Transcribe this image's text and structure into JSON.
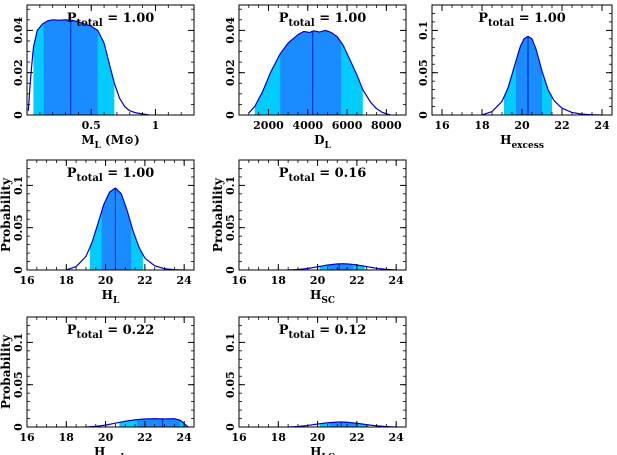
{
  "colors": {
    "band_outer": "#00ccff",
    "band_inner": "#1a8cff",
    "median_line": "#0033cc",
    "curve": "#0000cc",
    "axis": "#000000"
  },
  "chart_data": [
    {
      "type": "area",
      "panel": "ML",
      "title": "P",
      "title_sub": "total",
      "title_value": " = 1.00",
      "xlabel": "M",
      "xlabel_sub": "L",
      "xlabel_rest": " (M⊙)",
      "ylabel": "",
      "xlim": [
        0,
        1.3
      ],
      "ylim": [
        0,
        0.052
      ],
      "xticks": [
        0.5,
        1
      ],
      "xticklabels": [
        "0.5",
        "1"
      ],
      "xminor": 0.1,
      "yticks": [
        0,
        0.02,
        0.04
      ],
      "yticklabels": [
        "0",
        "0.02",
        "0.04"
      ],
      "yminor": 0.005,
      "median": 0.34,
      "band_outer": [
        0.05,
        0.68
      ],
      "band_inner": [
        0.13,
        0.55
      ],
      "x": [
        0.01,
        0.03,
        0.05,
        0.08,
        0.12,
        0.16,
        0.2,
        0.25,
        0.3,
        0.35,
        0.4,
        0.45,
        0.5,
        0.55,
        0.6,
        0.65,
        0.68,
        0.72,
        0.76,
        0.8,
        0.85,
        0.9,
        0.95
      ],
      "y": [
        0.002,
        0.019,
        0.032,
        0.04,
        0.043,
        0.0445,
        0.045,
        0.0448,
        0.045,
        0.0448,
        0.044,
        0.043,
        0.042,
        0.04,
        0.034,
        0.022,
        0.015,
        0.008,
        0.004,
        0.002,
        0.001,
        0.0005,
        0
      ]
    },
    {
      "type": "area",
      "panel": "DL",
      "title": "P",
      "title_sub": "total",
      "title_value": " = 1.00",
      "xlabel": "D",
      "xlabel_sub": "L",
      "xlabel_rest": "",
      "ylabel": "",
      "xlim": [
        500,
        9000
      ],
      "ylim": [
        0,
        0.052
      ],
      "xticks": [
        2000,
        4000,
        6000,
        8000
      ],
      "xticklabels": [
        "2000",
        "4000",
        "6000",
        "8000"
      ],
      "xminor": 500,
      "yticks": [
        0,
        0.02,
        0.04
      ],
      "yticklabels": [
        "0",
        "0.02",
        "0.04"
      ],
      "yminor": 0.005,
      "median": 4250,
      "band_outer": [
        1300,
        6800
      ],
      "band_inner": [
        2600,
        5700
      ],
      "x": [
        1000,
        1300,
        1700,
        2100,
        2600,
        3000,
        3500,
        3800,
        4100,
        4300,
        4600,
        4900,
        5200,
        5500,
        5800,
        6100,
        6500,
        6800,
        7200,
        7500,
        7800,
        8200
      ],
      "y": [
        0.001,
        0.004,
        0.011,
        0.02,
        0.029,
        0.034,
        0.038,
        0.0395,
        0.039,
        0.0398,
        0.0392,
        0.04,
        0.039,
        0.037,
        0.033,
        0.027,
        0.019,
        0.012,
        0.006,
        0.003,
        0.0012,
        0
      ]
    },
    {
      "type": "area",
      "panel": "Hexcess",
      "title": "P",
      "title_sub": "total",
      "title_value": " = 1.00",
      "xlabel": "H",
      "xlabel_sub": "excess",
      "xlabel_rest": "",
      "ylabel": "",
      "xlim": [
        15.5,
        24.5
      ],
      "ylim": [
        0,
        0.13
      ],
      "xticks": [
        16,
        18,
        20,
        22,
        24
      ],
      "xticklabels": [
        "16",
        "18",
        "20",
        "22",
        "24"
      ],
      "xminor": 0.5,
      "yticks": [
        0,
        0.05,
        0.1
      ],
      "yticklabels": [
        "0",
        "0.05",
        "0.1"
      ],
      "yminor": 0.01,
      "median": 20.3,
      "band_outer": [
        19.1,
        21.5
      ],
      "band_inner": [
        19.7,
        21.0
      ],
      "x": [
        18.0,
        18.5,
        19.0,
        19.3,
        19.6,
        19.9,
        20.1,
        20.3,
        20.5,
        20.7,
        21.0,
        21.3,
        21.6,
        22.0,
        22.5,
        23.0,
        23.5,
        24.0
      ],
      "y": [
        0,
        0.004,
        0.016,
        0.032,
        0.056,
        0.08,
        0.09,
        0.093,
        0.09,
        0.078,
        0.052,
        0.03,
        0.017,
        0.008,
        0.003,
        0.001,
        0.0003,
        0
      ]
    },
    {
      "type": "area",
      "panel": "HL",
      "title": "P",
      "title_sub": "total",
      "title_value": " = 1.00",
      "xlabel": "H",
      "xlabel_sub": "L",
      "xlabel_rest": "",
      "ylabel": "Probability",
      "xlim": [
        16,
        24.5
      ],
      "ylim": [
        0,
        0.13
      ],
      "xticks": [
        16,
        18,
        20,
        22,
        24
      ],
      "xticklabels": [
        "16",
        "18",
        "20",
        "22",
        "24"
      ],
      "xminor": 0.5,
      "yticks": [
        0,
        0.05,
        0.1
      ],
      "yticklabels": [
        "0",
        "0.05",
        "0.1"
      ],
      "yminor": 0.01,
      "median": 20.5,
      "band_outer": [
        19.2,
        21.9
      ],
      "band_inner": [
        19.8,
        21.3
      ],
      "x": [
        18.0,
        18.5,
        19.0,
        19.3,
        19.6,
        19.9,
        20.2,
        20.5,
        20.8,
        21.1,
        21.4,
        21.7,
        22.0,
        22.5,
        23.0,
        23.5,
        24.0
      ],
      "y": [
        0,
        0.004,
        0.016,
        0.032,
        0.054,
        0.077,
        0.092,
        0.097,
        0.09,
        0.07,
        0.046,
        0.027,
        0.014,
        0.005,
        0.0015,
        0.0004,
        0
      ]
    },
    {
      "type": "area",
      "panel": "HSC",
      "title": "P",
      "title_sub": "total",
      "title_value": " = 0.16",
      "xlabel": "H",
      "xlabel_sub": "SC",
      "xlabel_rest": "",
      "ylabel": "Probability",
      "xlim": [
        16,
        24.5
      ],
      "ylim": [
        0,
        0.13
      ],
      "xticks": [
        16,
        18,
        20,
        22,
        24
      ],
      "xticklabels": [
        "16",
        "18",
        "20",
        "22",
        "24"
      ],
      "xminor": 0.5,
      "yticks": [
        0,
        0.05,
        0.1
      ],
      "yticklabels": [
        "0",
        "0.05",
        "0.1"
      ],
      "yminor": 0.01,
      "median": 21.1,
      "band_outer": [
        20.1,
        22.4
      ],
      "band_inner": [
        20.5,
        21.8
      ],
      "x": [
        18.5,
        19.0,
        19.5,
        20.0,
        20.5,
        21.0,
        21.3,
        21.6,
        22.0,
        22.5,
        23.0,
        23.5,
        24.0
      ],
      "y": [
        0,
        0.0006,
        0.0018,
        0.0038,
        0.0058,
        0.0072,
        0.0074,
        0.007,
        0.006,
        0.004,
        0.002,
        0.0008,
        0
      ]
    },
    {
      "type": "area",
      "panel": "Hamb",
      "title": "P",
      "title_sub": "total",
      "title_value": " = 0.22",
      "xlabel": "H",
      "xlabel_sub": "amb",
      "xlabel_rest": "",
      "ylabel": "Probability",
      "xlim": [
        16,
        24.5
      ],
      "ylim": [
        0,
        0.13
      ],
      "xticks": [
        16,
        18,
        20,
        22,
        24
      ],
      "xticklabels": [
        "16",
        "18",
        "20",
        "22",
        "24"
      ],
      "xminor": 0.5,
      "yticks": [
        0,
        0.05,
        0.1
      ],
      "yticklabels": [
        "0",
        "0.05",
        "0.1"
      ],
      "yminor": 0.01,
      "median": 22.9,
      "band_outer": [
        20.7,
        24.1
      ],
      "band_inner": [
        21.6,
        23.8
      ],
      "x": [
        19.0,
        19.5,
        20.0,
        20.5,
        21.0,
        21.5,
        22.0,
        22.5,
        23.0,
        23.5,
        23.8,
        24.0,
        24.2
      ],
      "y": [
        0,
        0.0008,
        0.0022,
        0.0045,
        0.0068,
        0.0085,
        0.0095,
        0.0098,
        0.0095,
        0.0098,
        0.008,
        0.004,
        0
      ]
    },
    {
      "type": "area",
      "panel": "HLC",
      "title": "P",
      "title_sub": "total",
      "title_value": " = 0.12",
      "xlabel": "H",
      "xlabel_sub": "LC",
      "xlabel_rest": "",
      "ylabel": "",
      "xlim": [
        16,
        24.5
      ],
      "ylim": [
        0,
        0.13
      ],
      "xticks": [
        16,
        18,
        20,
        22,
        24
      ],
      "xticklabels": [
        "16",
        "18",
        "20",
        "22",
        "24"
      ],
      "xminor": 0.5,
      "yticks": [
        0,
        0.05,
        0.1
      ],
      "yticklabels": [
        "0",
        "0.05",
        "0.1"
      ],
      "yminor": 0.01,
      "median": 21.2,
      "band_outer": [
        20.1,
        22.6
      ],
      "band_inner": [
        20.6,
        22.0
      ],
      "x": [
        18.5,
        19.0,
        19.5,
        20.0,
        20.5,
        21.0,
        21.2,
        21.5,
        22.0,
        22.5,
        23.0,
        23.5,
        24.0
      ],
      "y": [
        0,
        0.0006,
        0.0018,
        0.0035,
        0.005,
        0.0058,
        0.006,
        0.0056,
        0.0044,
        0.0028,
        0.0014,
        0.0005,
        0
      ]
    }
  ]
}
